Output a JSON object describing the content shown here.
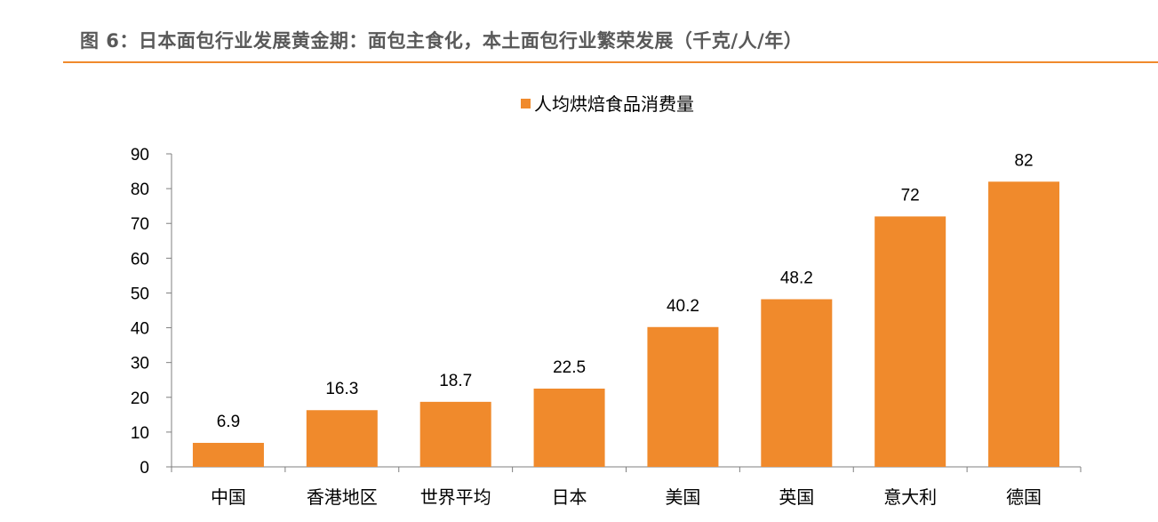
{
  "figure": {
    "title": "图 6：日本面包行业发展黄金期：面包主食化，本土面包行业繁荣发展（千克/人/年）"
  },
  "colors": {
    "bar": "#f08a2c",
    "title_rule": "#f08a2c",
    "axis": "#7f7f7f"
  },
  "chart_data": {
    "type": "bar",
    "categories": [
      "中国",
      "香港地区",
      "世界平均",
      "日本",
      "美国",
      "英国",
      "意大利",
      "德国"
    ],
    "series": [
      {
        "name": "人均烘焙食品消费量",
        "values": [
          6.9,
          16.3,
          18.7,
          22.5,
          40.2,
          48.2,
          72,
          82
        ]
      }
    ],
    "data_labels": [
      "6.9",
      "16.3",
      "18.7",
      "22.5",
      "40.2",
      "48.2",
      "72",
      "82"
    ],
    "ylim": [
      0,
      90
    ],
    "yticks": [
      0,
      10,
      20,
      30,
      40,
      50,
      60,
      70,
      80,
      90
    ],
    "grid": false,
    "legend_position": "top"
  }
}
